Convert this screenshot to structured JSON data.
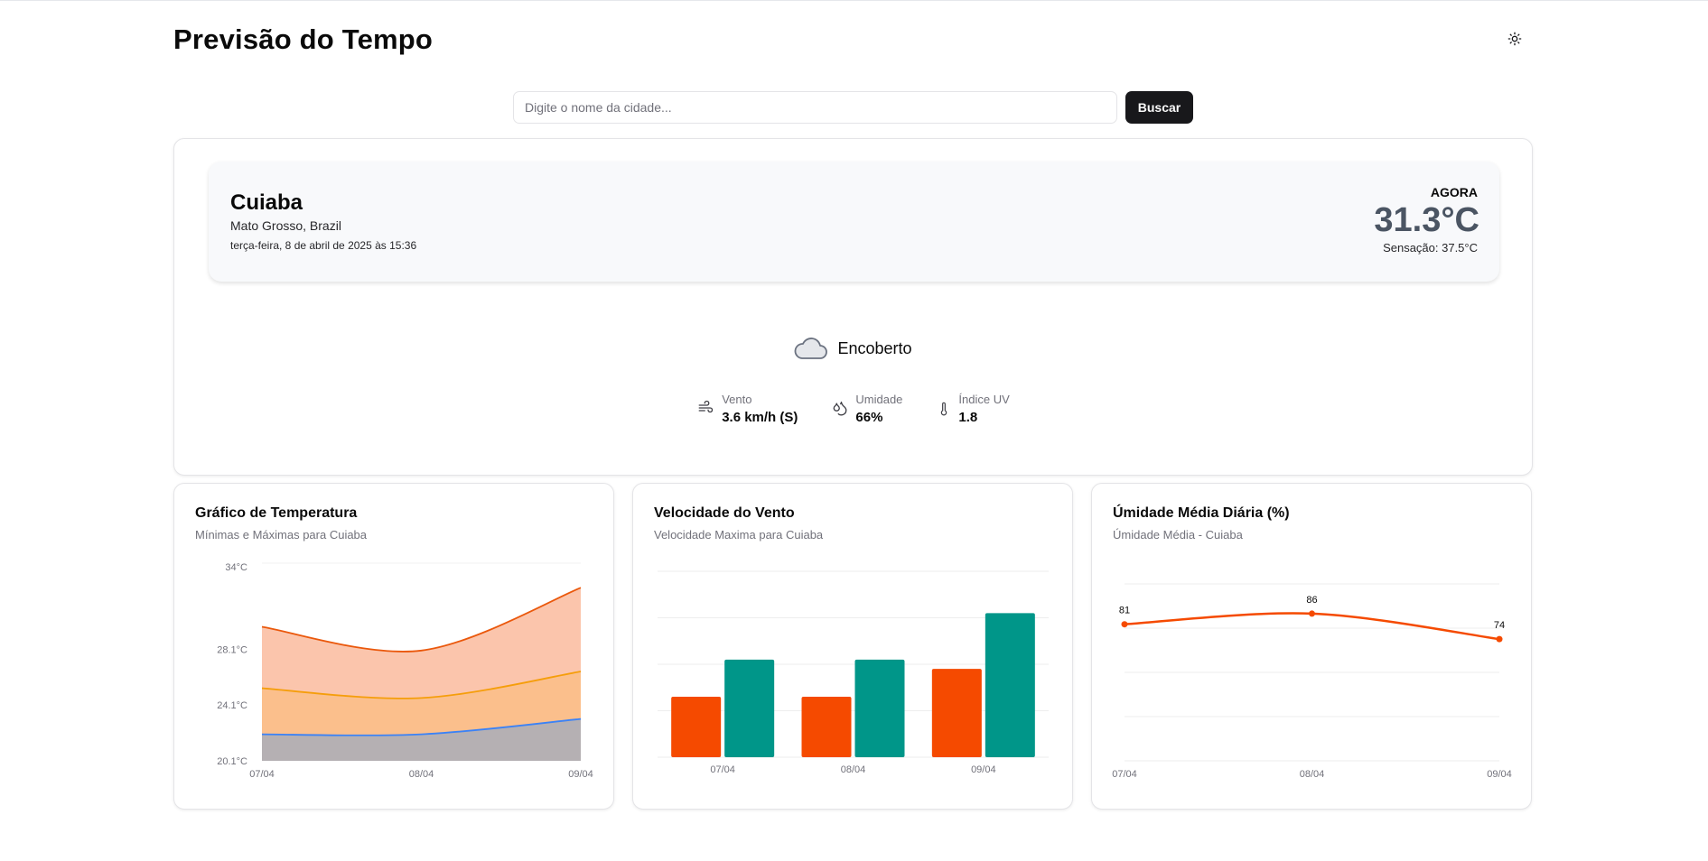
{
  "header": {
    "title": "Previsão do Tempo",
    "theme_icon": "sun-icon"
  },
  "search": {
    "placeholder": "Digite o nome da cidade...",
    "value": "",
    "button_label": "Buscar"
  },
  "current": {
    "city": "Cuiaba",
    "region": "Mato Grosso, Brazil",
    "datetime": "terça-feira, 8 de abril de 2025 às 15:36",
    "now_label": "AGORA",
    "temperature": "31.3°C",
    "feels_like": "Sensação: 37.5°C",
    "condition": "Encoberto",
    "condition_icon": "cloud-icon",
    "stats": [
      {
        "label": "Vento",
        "value": "3.6 km/h (S)",
        "icon": "wind-icon"
      },
      {
        "label": "Umidade",
        "value": "66%",
        "icon": "droplets-icon"
      },
      {
        "label": "Índice UV",
        "value": "1.8",
        "icon": "thermometer-icon"
      }
    ]
  },
  "charts": {
    "temperature": {
      "title": "Gráfico de Temperatura",
      "subtitle": "Mínimas e Máximas para Cuiaba"
    },
    "wind": {
      "title": "Velocidade do Vento",
      "subtitle": "Velocidade Maxima para Cuiaba"
    },
    "humidity": {
      "title": "Úmidade Média Diária (%)",
      "subtitle": "Úmidade Média - Cuiaba"
    }
  },
  "chart_data": [
    {
      "type": "area",
      "categories": [
        "07/04",
        "08/04",
        "09/04"
      ],
      "y_ticks": [
        "34°C",
        "28.1°C",
        "24.1°C",
        "20.1°C"
      ],
      "series": [
        {
          "values": [
            29.7,
            28.0,
            32.5
          ],
          "color": "#ea580c"
        },
        {
          "values": [
            25.3,
            24.6,
            26.5
          ],
          "color": "#f59e0b"
        },
        {
          "values": [
            22.0,
            22.0,
            23.1
          ],
          "color": "#3b82f6"
        }
      ],
      "ylim": [
        20.1,
        34
      ],
      "grid": true
    },
    {
      "type": "bar",
      "categories": [
        "07/04",
        "08/04",
        "09/04"
      ],
      "series": [
        {
          "values": [
            13,
            13,
            19
          ],
          "color": "#f54a00"
        },
        {
          "values": [
            21,
            21,
            31
          ],
          "color": "#009689"
        }
      ],
      "ylim": [
        0,
        40
      ],
      "grid": true
    },
    {
      "type": "line",
      "categories": [
        "07/04",
        "08/04",
        "09/04"
      ],
      "series": [
        {
          "values": [
            81,
            86,
            74
          ],
          "color": "#f54a00"
        }
      ],
      "data_labels": [
        "81",
        "86",
        "74"
      ],
      "ylim": [
        0,
        100
      ],
      "grid": true
    }
  ]
}
